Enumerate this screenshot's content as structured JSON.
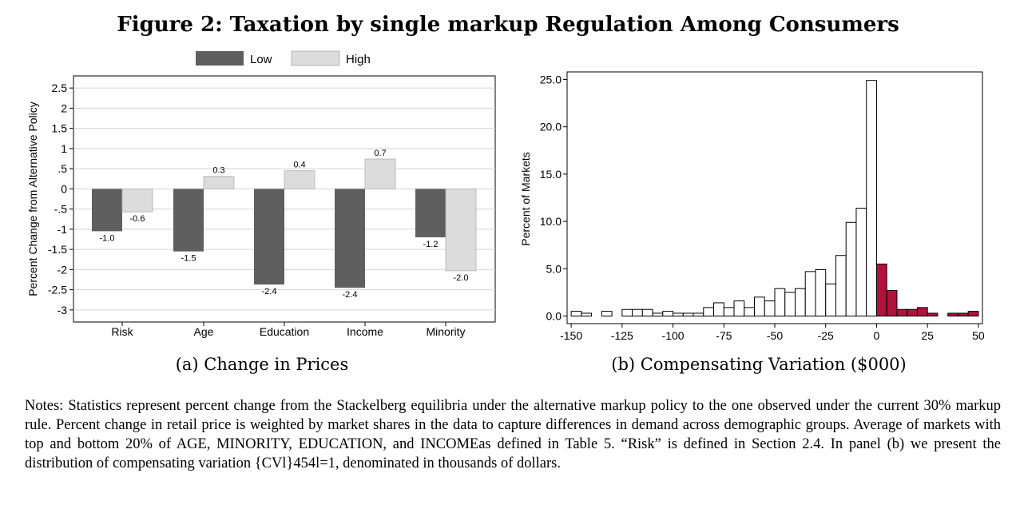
{
  "figure": {
    "title": "Figure 2: Taxation by single markup Regulation Among Consumers"
  },
  "chart_data": [
    {
      "type": "bar",
      "panel_caption": "(a) Change in Prices",
      "ylabel": "Percent Change from Alternative Policy",
      "xlabel": "",
      "ylim": [
        -3.3,
        2.8
      ],
      "yticks": [
        2.5,
        2,
        1.5,
        1,
        0.5,
        0,
        -0.5,
        -1,
        -1.5,
        -2,
        -2.5,
        -3
      ],
      "ytick_labels": [
        "2.5",
        "2",
        "1.5",
        "1",
        ".5",
        "0",
        "-.5",
        "-1",
        "-1.5",
        "-2",
        "-2.5",
        "-3"
      ],
      "categories": [
        "Risk",
        "Age",
        "Education",
        "Income",
        "Minority"
      ],
      "series": [
        {
          "name": "Low",
          "color": "#5f5f5f",
          "values": [
            -1.05,
            -1.55,
            -2.37,
            -2.45,
            -1.2
          ],
          "labels": [
            "-1.0",
            "-1.5",
            "-2.4",
            "-2.4",
            "-1.2"
          ]
        },
        {
          "name": "High",
          "color": "#dcdcdc",
          "values": [
            -0.57,
            0.31,
            0.45,
            0.74,
            -2.03
          ],
          "labels": [
            "-0.6",
            "0.3",
            "0.4",
            "0.7",
            "-2.0"
          ]
        }
      ],
      "legend": "top",
      "grid": true
    },
    {
      "type": "bar",
      "subtype": "histogram",
      "panel_caption": "(b) Compensating Variation ($000)",
      "ylabel": "Percent of Markets",
      "xlabel": "",
      "xlim": [
        -152,
        52
      ],
      "ylim": [
        -0.8,
        25.8
      ],
      "xticks": [
        -150,
        -125,
        -100,
        -75,
        -50,
        -25,
        0,
        25,
        50
      ],
      "xtick_labels": [
        "-150",
        "-125",
        "-100",
        "-75",
        "-50",
        "-25",
        "0",
        "25",
        "50"
      ],
      "yticks": [
        0,
        5,
        10,
        15,
        20,
        25
      ],
      "ytick_labels": [
        "0.0",
        "5.0",
        "10.0",
        "15.0",
        "20.0",
        "25.0"
      ],
      "bin_width": 5,
      "bins": [
        {
          "x": -150,
          "v": 0.5
        },
        {
          "x": -145,
          "v": 0.3
        },
        {
          "x": -140,
          "v": 0
        },
        {
          "x": -135,
          "v": 0.5
        },
        {
          "x": -130,
          "v": 0
        },
        {
          "x": -125,
          "v": 0.7
        },
        {
          "x": -120,
          "v": 0.7
        },
        {
          "x": -115,
          "v": 0.7
        },
        {
          "x": -110,
          "v": 0.3
        },
        {
          "x": -105,
          "v": 0.5
        },
        {
          "x": -100,
          "v": 0.3
        },
        {
          "x": -95,
          "v": 0.3
        },
        {
          "x": -90,
          "v": 0.3
        },
        {
          "x": -85,
          "v": 0.9
        },
        {
          "x": -80,
          "v": 1.4
        },
        {
          "x": -75,
          "v": 0.9
        },
        {
          "x": -70,
          "v": 1.6
        },
        {
          "x": -65,
          "v": 0.9
        },
        {
          "x": -60,
          "v": 2.0
        },
        {
          "x": -55,
          "v": 1.6
        },
        {
          "x": -50,
          "v": 2.9
        },
        {
          "x": -45,
          "v": 2.5
        },
        {
          "x": -40,
          "v": 2.9
        },
        {
          "x": -35,
          "v": 4.7
        },
        {
          "x": -30,
          "v": 4.9
        },
        {
          "x": -25,
          "v": 3.4
        },
        {
          "x": -20,
          "v": 6.4
        },
        {
          "x": -15,
          "v": 9.9
        },
        {
          "x": -10,
          "v": 11.4
        },
        {
          "x": -5,
          "v": 24.9
        },
        {
          "x": 0,
          "v": 5.5
        },
        {
          "x": 5,
          "v": 2.7
        },
        {
          "x": 10,
          "v": 0.7
        },
        {
          "x": 15,
          "v": 0.7
        },
        {
          "x": 20,
          "v": 0.9
        },
        {
          "x": 25,
          "v": 0.3
        },
        {
          "x": 30,
          "v": 0
        },
        {
          "x": 35,
          "v": 0.3
        },
        {
          "x": 40,
          "v": 0.3
        },
        {
          "x": 45,
          "v": 0.5
        }
      ],
      "colors": {
        "negative": "#ffffff",
        "positive": "#b0123c"
      }
    }
  ],
  "notes": {
    "text": "Notes: Statistics represent percent change from the Stackelberg equilibria under the alternative markup policy to the one observed under the current 30% markup rule. Percent change in retail price is weighted by market shares in the data to capture differences in demand across demographic groups. Average of markets with top and bottom 20% of AGE, MINORITY, EDUCATION, and INCOMEas defined in Table 5. “Risk” is defined in Section 2.4. In panel (b) we present the distribution of compensating variation {CVl}454l=1, denominated in thousands of dollars."
  }
}
